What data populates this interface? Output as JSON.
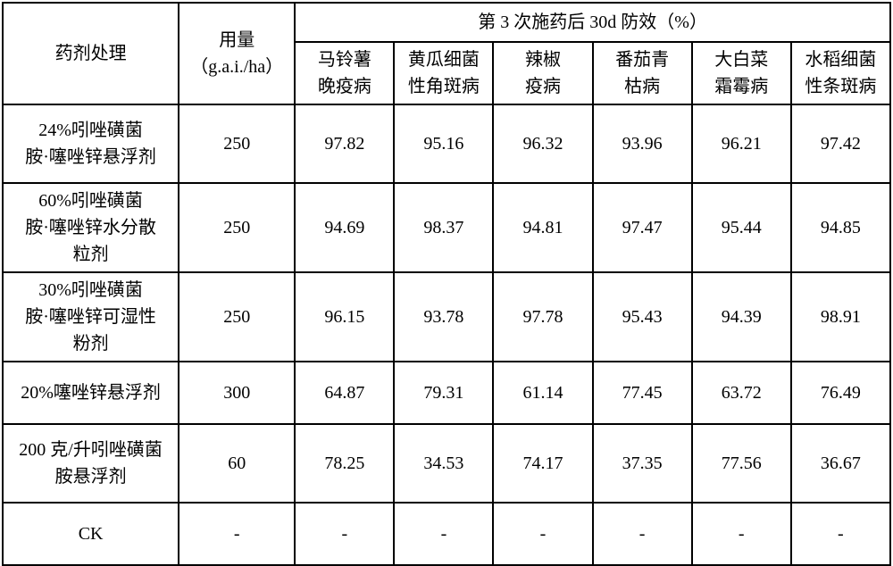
{
  "header": {
    "treatment": "药剂处理",
    "dose": "用量\n（g.a.i./ha）",
    "group_title": "第 3 次施药后 30d 防效（%）",
    "sub": [
      "马铃薯\n晚疫病",
      "黄瓜细菌\n性角斑病",
      "辣椒\n疫病",
      "番茄青\n枯病",
      "大白菜\n霜霉病",
      "水稻细菌\n性条斑病"
    ]
  },
  "rows": [
    {
      "treatment": "24%吲唑磺菌\n胺·噻唑锌悬浮剂",
      "dose": "250",
      "v": [
        "97.82",
        "95.16",
        "96.32",
        "93.96",
        "96.21",
        "97.42"
      ],
      "cls": "rrow-mid"
    },
    {
      "treatment": "60%吲唑磺菌\n胺·噻唑锌水分散\n粒剂",
      "dose": "250",
      "v": [
        "94.69",
        "98.37",
        "94.81",
        "97.47",
        "95.44",
        "94.85"
      ],
      "cls": "rrow"
    },
    {
      "treatment": "30%吲唑磺菌\n胺·噻唑锌可湿性\n粉剂",
      "dose": "250",
      "v": [
        "96.15",
        "93.78",
        "97.78",
        "95.43",
        "94.39",
        "98.91"
      ],
      "cls": "rrow"
    },
    {
      "treatment": "20%噻唑锌悬浮剂",
      "dose": "300",
      "v": [
        "64.87",
        "79.31",
        "61.14",
        "77.45",
        "63.72",
        "76.49"
      ],
      "cls": "rrow-short"
    },
    {
      "treatment": "200 克/升吲唑磺菌\n胺悬浮剂",
      "dose": "60",
      "v": [
        "78.25",
        "34.53",
        "74.17",
        "37.35",
        "77.56",
        "36.67"
      ],
      "cls": "rrow-mid"
    },
    {
      "treatment": "CK",
      "dose": "-",
      "v": [
        "-",
        "-",
        "-",
        "-",
        "-",
        "-"
      ],
      "cls": "rrow-short"
    }
  ]
}
